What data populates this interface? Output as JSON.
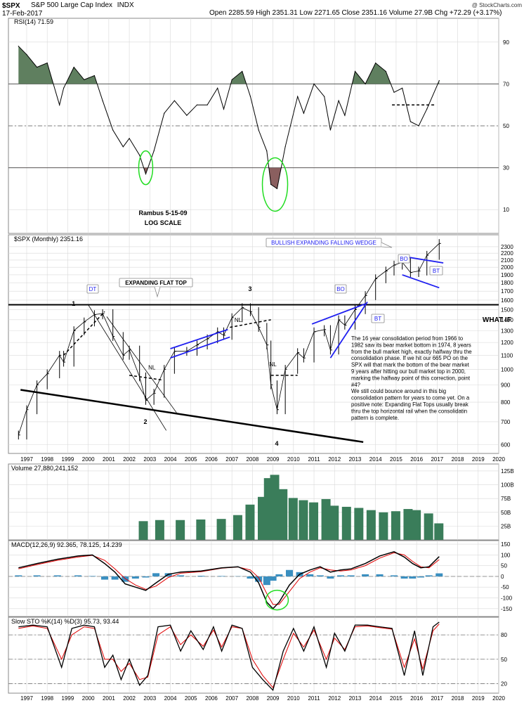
{
  "header": {
    "symbol": "$SPX",
    "name": "S&P 500 Large Cap Index",
    "exchange": "INDX",
    "date": "17-Feb-2017",
    "quote": "Open 2285.59  High 2351.31  Low 2271.65  Close 2351.16  Volume 27.9B  Chg +72.29 (+3.17%)",
    "watermark": "@ StockCharts.com"
  },
  "colors": {
    "rsi_line": "#000000",
    "rsi_overbought_fill": "#5f7f5f",
    "rsi_oversold_fill": "#8a5f5f",
    "volume_bars": "#3a7d5a",
    "macd_line": "#000000",
    "macd_signal": "#e00000",
    "macd_hist": "#3a8fc0",
    "sto_k": "#000000",
    "sto_d": "#e00000",
    "wedge": "#1e1ef0",
    "circle": "#22dd22",
    "grid": "#d9d9d9"
  },
  "chart_data": [
    {
      "type": "line",
      "panel": "rsi",
      "legend": "RSI(14) 71.59",
      "ylim": [
        0,
        100
      ],
      "y_ticks": [
        10,
        30,
        50,
        70,
        90
      ],
      "levels": [
        30,
        50,
        70
      ],
      "x": [
        1996.6,
        1997.0,
        1997.5,
        1998.0,
        1998.6,
        1998.8,
        1999.3,
        1999.8,
        2000.3,
        2000.7,
        2001.2,
        2001.7,
        2002.0,
        2002.5,
        2002.8,
        2003.2,
        2003.7,
        2004.2,
        2004.8,
        2005.3,
        2005.8,
        2006.3,
        2006.6,
        2007.0,
        2007.5,
        2007.9,
        2008.3,
        2008.7,
        2008.9,
        2009.2,
        2009.6,
        2010.2,
        2010.5,
        2011.0,
        2011.5,
        2011.8,
        2012.2,
        2012.5,
        2013.0,
        2013.5,
        2014.0,
        2014.5,
        2014.9,
        2015.3,
        2015.7,
        2016.1,
        2016.5,
        2017.1
      ],
      "y": [
        88,
        84,
        78,
        80,
        60,
        68,
        78,
        72,
        74,
        62,
        48,
        40,
        44,
        36,
        27,
        38,
        56,
        62,
        55,
        60,
        60,
        68,
        58,
        72,
        76,
        64,
        48,
        38,
        22,
        20,
        40,
        64,
        56,
        70,
        64,
        48,
        62,
        55,
        76,
        70,
        80,
        76,
        66,
        68,
        52,
        50,
        58,
        71.59
      ],
      "annotations": [
        "Rambus 5-15-09",
        "LOG SCALE"
      ]
    },
    {
      "type": "bar",
      "subtype": "ohlc",
      "panel": "price",
      "legend": "$SPX (Monthly) 2351.16",
      "scale": "log",
      "ylim": [
        570,
        2400
      ],
      "y_ticks": [
        600,
        700,
        800,
        900,
        1000,
        1100,
        1200,
        1300,
        1400,
        1500,
        1600,
        1700,
        1800,
        1900,
        2000,
        2100,
        2200,
        2300
      ],
      "x_ticks": [
        "1997",
        "1998",
        "1999",
        "2000",
        "2001",
        "2002",
        "2003",
        "2004",
        "2005",
        "2006",
        "2007",
        "2008",
        "2009",
        "2010",
        "2011",
        "2012",
        "2013",
        "2014",
        "2015",
        "2016",
        "2017",
        "2018",
        "2019",
        "2020"
      ],
      "x": [
        1996.6,
        1997.0,
        1997.5,
        1998.0,
        1998.6,
        1998.8,
        1999.3,
        1999.8,
        2000.3,
        2000.7,
        2001.2,
        2001.7,
        2002.0,
        2002.5,
        2002.8,
        2003.2,
        2003.7,
        2004.2,
        2004.8,
        2005.3,
        2005.8,
        2006.3,
        2006.6,
        2007.0,
        2007.5,
        2007.9,
        2008.3,
        2008.7,
        2008.9,
        2009.2,
        2009.6,
        2010.2,
        2010.5,
        2011.0,
        2011.5,
        2011.8,
        2012.2,
        2012.5,
        2013.0,
        2013.5,
        2014.0,
        2014.5,
        2014.9,
        2015.3,
        2015.7,
        2016.1,
        2016.5,
        2017.1
      ],
      "y": [
        640,
        760,
        900,
        970,
        1100,
        1050,
        1300,
        1380,
        1450,
        1460,
        1250,
        1100,
        1140,
        950,
        810,
        850,
        1000,
        1130,
        1130,
        1180,
        1230,
        1290,
        1260,
        1420,
        1520,
        1480,
        1330,
        1180,
        900,
        760,
        1000,
        1120,
        1080,
        1290,
        1310,
        1140,
        1400,
        1350,
        1500,
        1650,
        1850,
        1950,
        2030,
        2070,
        1930,
        1950,
        2170,
        2351.16
      ],
      "labels": {
        "expanding_flat_top": "EXPANDING FLAT TOP",
        "bullish_wedge": "BULLISH EXPANDING FALLING WEDGE",
        "what_if": "WHAT IF",
        "dt": "DT",
        "bo1": "BO",
        "bt1": "BT",
        "bo2": "BO",
        "bt2": "BT",
        "nl1": "NL",
        "nl2": "NL",
        "nl3": "NL",
        "p1": "1",
        "p2": "2",
        "p3": "3",
        "p4": "4"
      },
      "notes": [
        "The 16 year consolidation period from 1966 to",
        "1982 saw its bear market bottom in 1974, 8 years",
        "from the bull market high, exactly halfway thru the",
        "consolidation phase.  If we hit our 665  PO on the",
        "SPX will that mark the bottom of the bear market",
        "9 years after hitting our bull market top in 2000,",
        "marking the halfway point of this correction, point",
        "#4?",
        " We still could bounce around in this big",
        "consolidation pattern for years to come yet. On a",
        "positive note: Expanding Flat Tops usually break",
        "thru the top horizontal rail when the consolidatin",
        "pattern is complete."
      ]
    },
    {
      "type": "bar",
      "panel": "volume",
      "legend": "Volume 27,880,241,152",
      "ylim": [
        0,
        130
      ],
      "y_ticks": [
        "25B",
        "50B",
        "75B",
        "100B",
        "125B"
      ],
      "y_tick_values": [
        25,
        50,
        75,
        100,
        125
      ],
      "x": [
        2002.7,
        2003.5,
        2004.5,
        2005.5,
        2006.5,
        2007.3,
        2007.9,
        2008.5,
        2008.8,
        2009.1,
        2009.5,
        2010.0,
        2010.5,
        2011.0,
        2011.6,
        2012.0,
        2012.6,
        2013.2,
        2013.8,
        2014.4,
        2015.0,
        2015.6,
        2016.0,
        2016.6,
        2017.1
      ],
      "y": [
        34,
        36,
        36,
        37,
        38,
        45,
        64,
        78,
        112,
        118,
        92,
        76,
        72,
        68,
        74,
        62,
        60,
        58,
        54,
        50,
        52,
        56,
        54,
        48,
        30
      ]
    },
    {
      "type": "line",
      "panel": "macd",
      "legend": "MACD(12,26,9) 92.365, 78.125, 14.239",
      "ylim": [
        -180,
        160
      ],
      "y_ticks": [
        -150,
        -100,
        -50,
        0,
        50,
        100,
        150
      ],
      "series": [
        {
          "x": [
            1996.6,
            1997.5,
            1998.5,
            1999.5,
            2000.2,
            2000.8,
            2001.3,
            2001.8,
            2002.3,
            2002.8,
            2003.3,
            2003.9,
            2004.5,
            2005.5,
            2006.5,
            2007.3,
            2007.9,
            2008.3,
            2008.7,
            2009.0,
            2009.3,
            2009.8,
            2010.3,
            2010.8,
            2011.3,
            2011.8,
            2012.3,
            2012.8,
            2013.5,
            2014.2,
            2014.9,
            2015.4,
            2015.8,
            2016.2,
            2016.6,
            2017.1
          ],
          "y": [
            40,
            60,
            80,
            95,
            100,
            60,
            20,
            -35,
            -50,
            -65,
            -30,
            10,
            20,
            25,
            40,
            45,
            20,
            -30,
            -120,
            -150,
            -120,
            -40,
            10,
            30,
            45,
            20,
            30,
            35,
            60,
            95,
            115,
            90,
            60,
            40,
            45,
            92.365
          ]
        },
        {
          "x": [
            1996.6,
            1997.5,
            1998.5,
            1999.5,
            2000.2,
            2000.8,
            2001.3,
            2001.8,
            2002.3,
            2002.8,
            2003.3,
            2003.9,
            2004.5,
            2005.5,
            2006.5,
            2007.3,
            2007.9,
            2008.3,
            2008.7,
            2009.0,
            2009.3,
            2009.8,
            2010.3,
            2010.8,
            2011.3,
            2011.8,
            2012.3,
            2012.8,
            2013.5,
            2014.2,
            2014.9,
            2015.4,
            2015.8,
            2016.2,
            2016.6,
            2017.1
          ],
          "y": [
            35,
            55,
            75,
            90,
            98,
            75,
            35,
            -10,
            -40,
            -60,
            -45,
            -5,
            15,
            22,
            38,
            44,
            30,
            -5,
            -80,
            -130,
            -130,
            -70,
            -10,
            20,
            40,
            30,
            25,
            30,
            50,
            85,
            110,
            100,
            70,
            45,
            40,
            78.125
          ]
        }
      ],
      "histogram_y": [
        5,
        5,
        5,
        5,
        2,
        -15,
        -15,
        -25,
        -10,
        -5,
        15,
        15,
        5,
        3,
        2,
        1,
        -10,
        -25,
        -40,
        -20,
        10,
        30,
        20,
        10,
        5,
        -10,
        5,
        5,
        10,
        10,
        5,
        -10,
        -10,
        -5,
        5,
        14.239
      ]
    },
    {
      "type": "line",
      "panel": "stochastic",
      "legend": "Slow STO %K(14) %D(3) 95.73, 93.44",
      "ylim": [
        10,
        100
      ],
      "y_ticks": [
        20,
        50,
        80
      ],
      "levels": [
        20,
        50,
        80
      ],
      "series": [
        {
          "x": [
            1996.6,
            1997.3,
            1998.0,
            1998.7,
            1999.2,
            1999.8,
            2000.3,
            2000.8,
            2001.2,
            2001.6,
            2002.0,
            2002.5,
            2002.9,
            2003.4,
            2004.0,
            2004.5,
            2005.0,
            2005.6,
            2006.1,
            2006.5,
            2007.0,
            2007.5,
            2008.0,
            2008.5,
            2009.0,
            2009.5,
            2010.0,
            2010.5,
            2011.0,
            2011.6,
            2012.0,
            2012.5,
            2013.0,
            2013.6,
            2014.2,
            2014.8,
            2015.4,
            2015.9,
            2016.3,
            2016.8,
            2017.1
          ],
          "y": [
            90,
            92,
            90,
            40,
            88,
            92,
            90,
            40,
            55,
            25,
            50,
            18,
            30,
            90,
            92,
            60,
            85,
            62,
            90,
            60,
            92,
            88,
            40,
            25,
            12,
            60,
            88,
            60,
            90,
            40,
            82,
            60,
            92,
            92,
            90,
            88,
            30,
            85,
            30,
            90,
            95.73
          ]
        },
        {
          "x": [
            1996.6,
            1997.3,
            1998.0,
            1998.7,
            1999.2,
            1999.8,
            2000.3,
            2000.8,
            2001.2,
            2001.6,
            2002.0,
            2002.5,
            2002.9,
            2003.4,
            2004.0,
            2004.5,
            2005.0,
            2005.6,
            2006.1,
            2006.5,
            2007.0,
            2007.5,
            2008.0,
            2008.5,
            2009.0,
            2009.5,
            2010.0,
            2010.5,
            2011.0,
            2011.6,
            2012.0,
            2012.5,
            2013.0,
            2013.6,
            2014.2,
            2014.8,
            2015.4,
            2015.9,
            2016.3,
            2016.8,
            2017.1
          ],
          "y": [
            88,
            91,
            88,
            50,
            80,
            90,
            88,
            50,
            50,
            35,
            45,
            25,
            28,
            80,
            90,
            68,
            80,
            66,
            86,
            65,
            90,
            88,
            50,
            30,
            15,
            50,
            82,
            65,
            86,
            50,
            76,
            62,
            90,
            91,
            89,
            87,
            40,
            75,
            38,
            85,
            93.44
          ]
        }
      ]
    }
  ]
}
